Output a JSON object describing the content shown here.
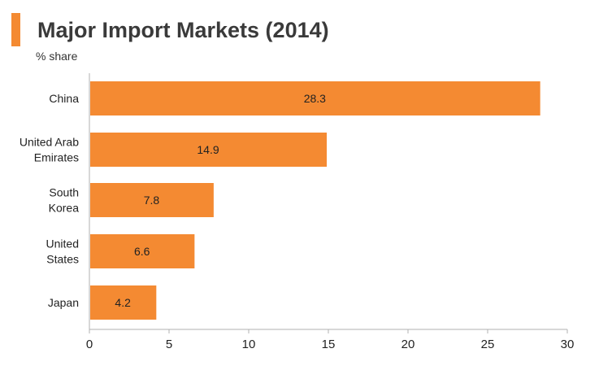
{
  "header": {
    "title": "Major Import Markets (2014)",
    "subtitle": "% share",
    "accent_color": "#f48a32"
  },
  "chart_data": {
    "type": "bar",
    "orientation": "horizontal",
    "title": "Major Import Markets (2014)",
    "subtitle": "% share",
    "categories": [
      [
        "China"
      ],
      [
        "United Arab",
        "Emirates"
      ],
      [
        "South",
        "Korea"
      ],
      [
        "United",
        "States"
      ],
      [
        "Japan"
      ]
    ],
    "values": [
      28.3,
      14.9,
      7.8,
      6.6,
      4.2
    ],
    "value_labels": [
      "28.3",
      "14.9",
      "7.8",
      "6.6",
      "4.2"
    ],
    "xlim": [
      0,
      30
    ],
    "xticks": [
      "0",
      "5",
      "10",
      "15",
      "20",
      "25",
      "30"
    ],
    "grid": false,
    "legend": "none",
    "bar_color": "#f48a32",
    "axis_color": "#b0b0b0"
  }
}
